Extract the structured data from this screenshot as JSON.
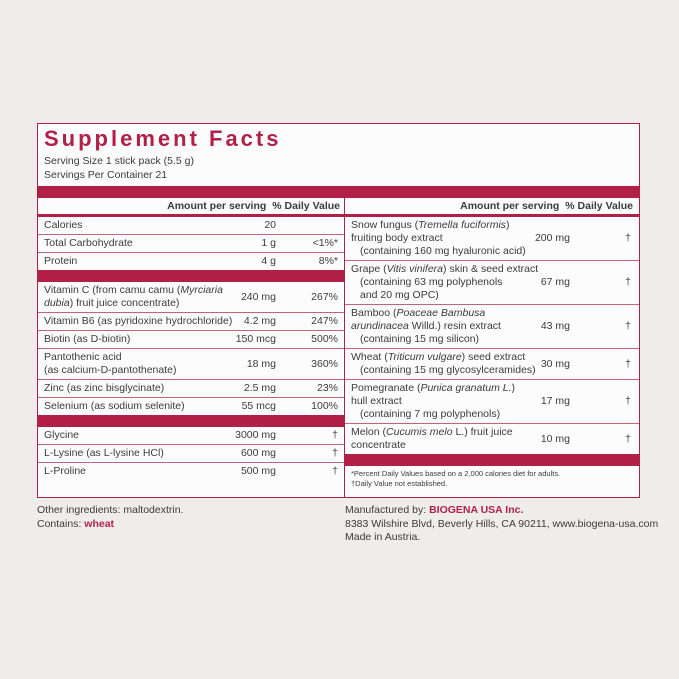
{
  "title": "Supplement Facts",
  "serving_size": "Serving Size 1 stick pack  (5.5 g)",
  "servings": "Servings Per Container 21",
  "left": {
    "header": {
      "amount": "Amount per serving",
      "dv": "% Daily Value"
    },
    "groups": [
      [
        {
          "name": [
            [
              "Calories"
            ]
          ],
          "amount": "20"
        },
        {
          "name": [
            [
              "Total Carbohydrate"
            ]
          ],
          "amount": "1 g",
          "dv": "<1%*"
        },
        {
          "name": [
            [
              "Protein"
            ]
          ],
          "amount": "4 g",
          "dv": "8%*"
        }
      ],
      [
        {
          "name": [
            [
              "Vitamin C (from camu camu (",
              {
                "text": "Myrciaria",
                "italic": true
              }
            ],
            [
              {
                "text": "dubia",
                "italic": true
              },
              ") fruit juice concentrate)"
            ]
          ],
          "amount": "240 mg",
          "dv": "267%"
        },
        {
          "name": [
            [
              "Vitamin B6 (as pyridoxine hydrochloride)"
            ]
          ],
          "amount": "4.2 mg",
          "dv": "247%"
        },
        {
          "name": [
            [
              "Biotin (as D-biotin)"
            ]
          ],
          "amount": "150 mcg",
          "dv": "500%"
        },
        {
          "name": [
            [
              "Pantothenic acid"
            ],
            [
              "(as calcium-D-pantothenate)"
            ]
          ],
          "amount": "18 mg",
          "dv": "360%"
        },
        {
          "name": [
            [
              "Zinc (as zinc bisglycinate)"
            ]
          ],
          "amount": "2.5 mg",
          "dv": "23%"
        },
        {
          "name": [
            [
              "Selenium (as sodium selenite)"
            ]
          ],
          "amount": "55 mcg",
          "dv": "100%"
        }
      ],
      [
        {
          "name": [
            [
              "Glycine"
            ]
          ],
          "amount": "3000 mg",
          "dv": "†"
        },
        {
          "name": [
            [
              "L-Lysine (as L-lysine HCl)"
            ]
          ],
          "amount": "600 mg",
          "dv": "†"
        },
        {
          "name": [
            [
              "L-Proline"
            ]
          ],
          "amount": "500 mg",
          "dv": "†"
        }
      ]
    ]
  },
  "right": {
    "header": {
      "amount": "Amount per serving",
      "dv": "% Daily Value"
    },
    "groups": [
      [
        {
          "name": [
            [
              "Snow fungus (",
              {
                "text": "Tremella fuciformis",
                "italic": true
              },
              ")"
            ],
            [
              "fruiting body extract"
            ]
          ],
          "note": [
            [
              "(containing 160 mg hyaluronic acid)"
            ]
          ],
          "amount": "200 mg",
          "dv": "†"
        },
        {
          "name": [
            [
              "Grape (",
              {
                "text": "Vitis vinifera",
                "italic": true
              },
              ") skin & seed extract"
            ]
          ],
          "note": [
            [
              "(containing 63 mg polyphenols"
            ],
            [
              "and 20 mg OPC)"
            ]
          ],
          "amount": "67 mg",
          "dv": "†"
        },
        {
          "name": [
            [
              "Bamboo (",
              {
                "text": "Poaceae Bambusa",
                "italic": true
              }
            ],
            [
              {
                "text": "arundinacea",
                "italic": true
              },
              " Willd.) resin extract"
            ]
          ],
          "note": [
            [
              "(containing 15 mg silicon)"
            ]
          ],
          "amount": "43 mg",
          "dv": "†"
        },
        {
          "name": [
            [
              "Wheat (",
              {
                "text": "Triticum vulgare",
                "italic": true
              },
              ") seed extract"
            ]
          ],
          "note": [
            [
              "(containing 15 mg glycosylceramides)"
            ]
          ],
          "amount": "30 mg",
          "dv": "†"
        },
        {
          "name": [
            [
              "Pomegranate (",
              {
                "text": "Punica granatum L.",
                "italic": true
              },
              ")"
            ],
            [
              "hull extract"
            ]
          ],
          "note": [
            [
              "(containing 7 mg polyphenols)"
            ]
          ],
          "amount": "17 mg",
          "dv": "†"
        },
        {
          "name": [
            [
              "Melon (",
              {
                "text": "Cucumis melo",
                "italic": true
              },
              " L.) fruit juice"
            ],
            [
              "concentrate"
            ]
          ],
          "amount": "10 mg",
          "dv": "†"
        }
      ]
    ],
    "footnotes": [
      "*Percent Daily Values based on a 2,000 calories diet for adults.",
      "†Daily Value not established."
    ]
  },
  "other_ingredients": "Other ingredients: maltodextrin.",
  "contains": {
    "label": "Contains:",
    "allergen": "wheat"
  },
  "manufacturer": {
    "label": "Manufactured by:",
    "name": "BIOGENA USA Inc.",
    "address": "8383 Wilshire Blvd, Beverly Hills, CA 90211, www.biogena-usa.com",
    "origin": "Made in Austria."
  }
}
